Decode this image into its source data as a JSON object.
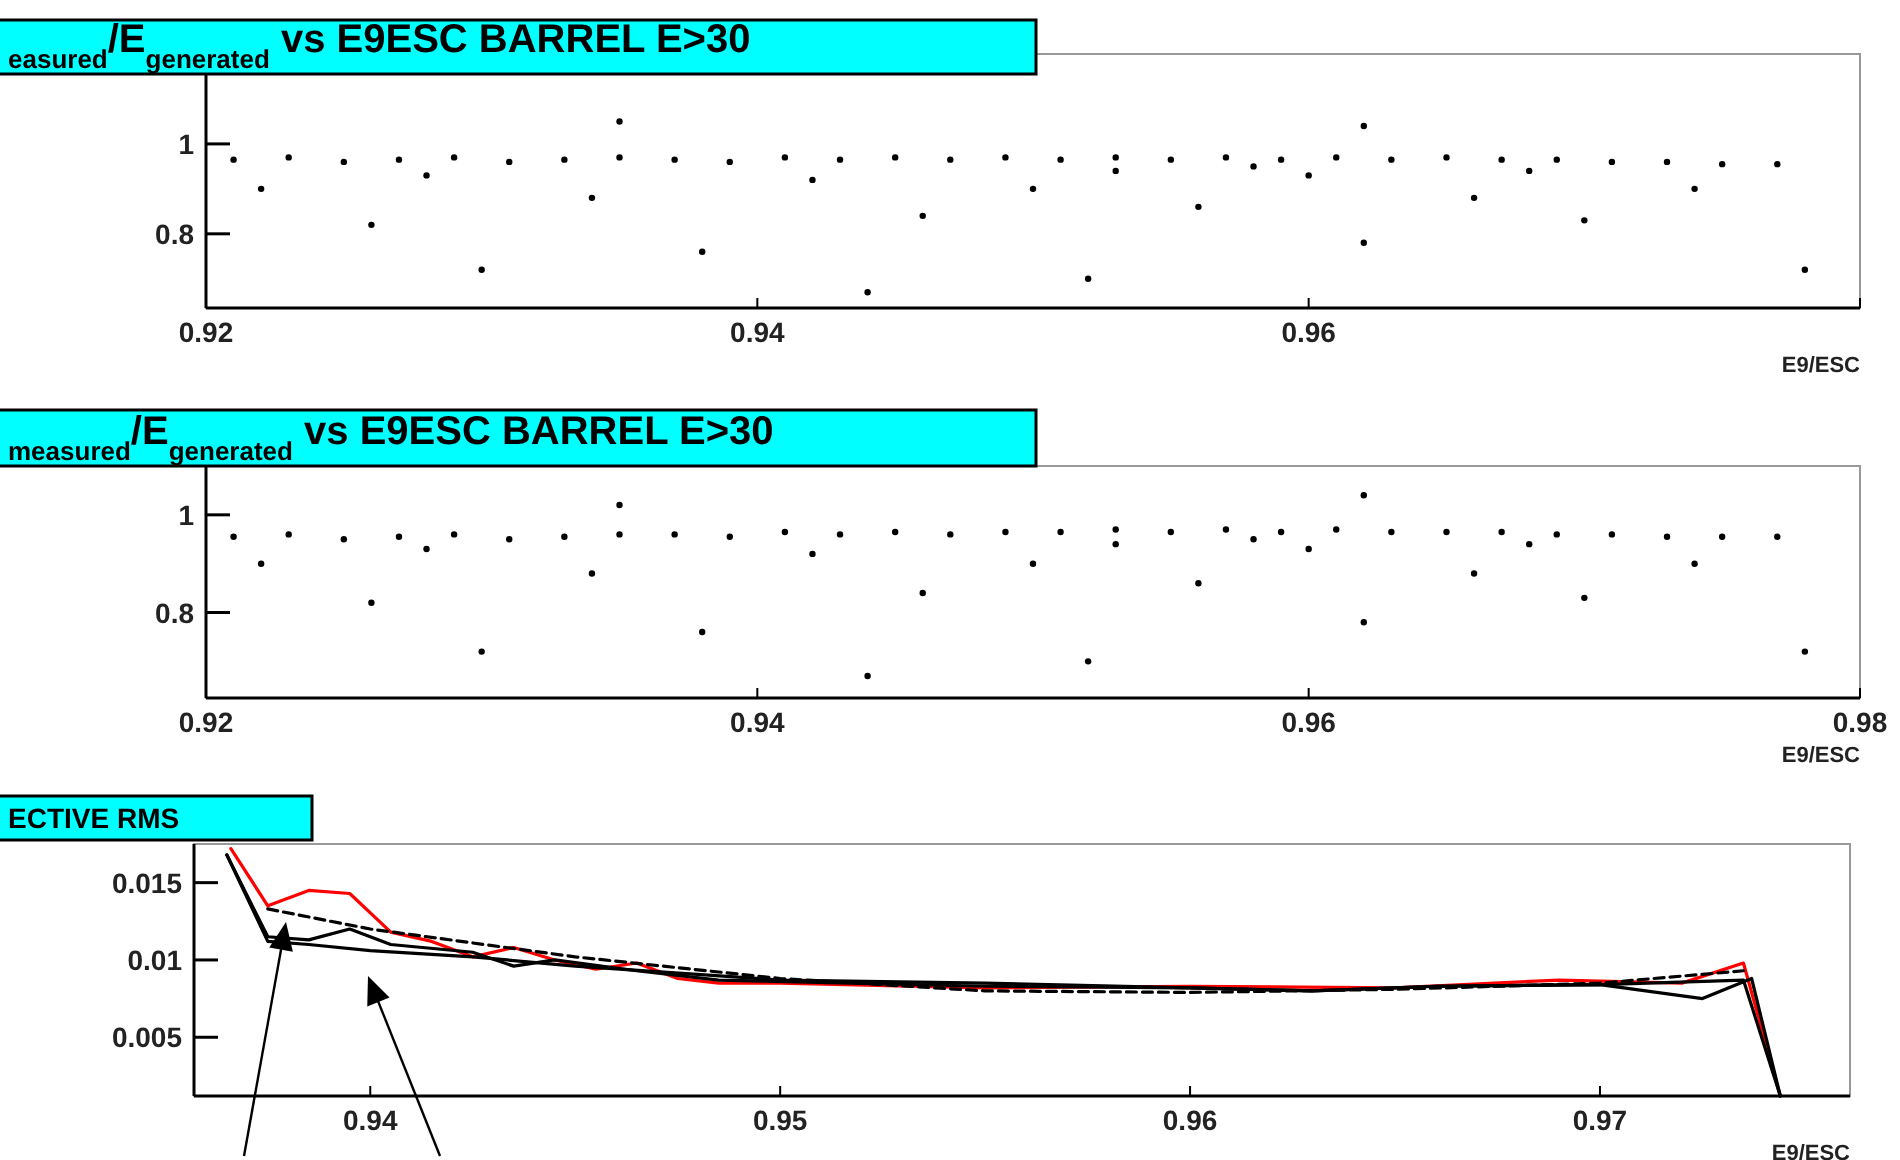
{
  "chart_data": [
    {
      "type": "scatter",
      "title": "$_{easured}$/E$_{generated}$ vs E9ESC BARREL E>30",
      "xlabel": "E9/ESC",
      "marker": "circle",
      "xlim": [
        0.92,
        0.98
      ],
      "ylim": [
        0.635,
        1.2
      ],
      "xticks": [
        0.92,
        0.94,
        0.96,
        {
          "value": 0.98,
          "label": null
        }
      ],
      "yticks": [
        0.8,
        1
      ],
      "series": [
        {
          "color": "#000000",
          "x": [
            0.921,
            0.923,
            0.925,
            0.927,
            0.929,
            0.931,
            0.933,
            0.935,
            0.937,
            0.939,
            0.941,
            0.943,
            0.945,
            0.947,
            0.949,
            0.951,
            0.953,
            0.955,
            0.957,
            0.959,
            0.961,
            0.963,
            0.965,
            0.967,
            0.969,
            0.971,
            0.973,
            0.975,
            0.977,
            0.922,
            0.926,
            0.93,
            0.934,
            0.938,
            0.942,
            0.946,
            0.95,
            0.952,
            0.956,
            0.96,
            0.962,
            0.966,
            0.97,
            0.974,
            0.978,
            0.935,
            0.962,
            0.944,
            0.928,
            0.958,
            0.953,
            0.968
          ],
          "values": [
            0.965,
            0.97,
            0.96,
            0.965,
            0.97,
            0.96,
            0.965,
            0.97,
            0.965,
            0.96,
            0.97,
            0.965,
            0.97,
            0.965,
            0.97,
            0.965,
            0.97,
            0.965,
            0.97,
            0.965,
            0.97,
            0.965,
            0.97,
            0.965,
            0.965,
            0.96,
            0.96,
            0.955,
            0.955,
            0.9,
            0.82,
            0.72,
            0.88,
            0.76,
            0.92,
            0.84,
            0.9,
            0.7,
            0.86,
            0.93,
            0.78,
            0.88,
            0.83,
            0.9,
            0.72,
            1.05,
            1.04,
            0.67,
            0.93,
            0.95,
            0.94,
            0.94
          ]
        }
      ]
    },
    {
      "type": "scatter",
      "title": "$_{measured}$/E$_{generated}$ vs E9ESC BARREL E>30",
      "xlabel": "E9/ESC",
      "marker": "circle",
      "xlim": [
        0.92,
        0.98
      ],
      "ylim": [
        0.625,
        1.1
      ],
      "xticks": [
        0.92,
        0.94,
        0.96,
        0.98
      ],
      "yticks": [
        0.8,
        1
      ],
      "series": [
        {
          "color": "#000000",
          "x": [
            0.921,
            0.923,
            0.925,
            0.927,
            0.929,
            0.931,
            0.933,
            0.935,
            0.937,
            0.939,
            0.941,
            0.943,
            0.945,
            0.947,
            0.949,
            0.951,
            0.953,
            0.955,
            0.957,
            0.959,
            0.961,
            0.963,
            0.965,
            0.967,
            0.969,
            0.971,
            0.973,
            0.975,
            0.977,
            0.922,
            0.926,
            0.93,
            0.934,
            0.938,
            0.942,
            0.946,
            0.95,
            0.952,
            0.956,
            0.96,
            0.962,
            0.966,
            0.97,
            0.974,
            0.978,
            0.935,
            0.962,
            0.944,
            0.928,
            0.958,
            0.953,
            0.968
          ],
          "values": [
            0.955,
            0.96,
            0.95,
            0.955,
            0.96,
            0.95,
            0.955,
            0.96,
            0.96,
            0.955,
            0.965,
            0.96,
            0.965,
            0.96,
            0.965,
            0.965,
            0.97,
            0.965,
            0.97,
            0.965,
            0.97,
            0.965,
            0.965,
            0.965,
            0.96,
            0.96,
            0.955,
            0.955,
            0.955,
            0.9,
            0.82,
            0.72,
            0.88,
            0.76,
            0.92,
            0.84,
            0.9,
            0.7,
            0.86,
            0.93,
            0.78,
            0.88,
            0.83,
            0.9,
            0.72,
            1.02,
            1.04,
            0.67,
            0.93,
            0.95,
            0.94,
            0.94
          ]
        }
      ]
    },
    {
      "type": "line",
      "title": "ECTIVE RMS",
      "xlabel": "E9/ESC",
      "xlim": [
        0.9357,
        0.9761
      ],
      "ylim": [
        0.0012,
        0.0175
      ],
      "xticks": [
        0.94,
        0.95,
        0.96,
        0.97
      ],
      "yticks": [
        0.005,
        0.01,
        0.015
      ],
      "series": [
        {
          "color": "#ff0000",
          "line_style": "solid",
          "x": [
            0.9366,
            0.9375,
            0.9385,
            0.9395,
            0.9405,
            0.9415,
            0.9425,
            0.9435,
            0.9445,
            0.9455,
            0.9465,
            0.9475,
            0.9485,
            0.95,
            0.955,
            0.96,
            0.965,
            0.969,
            0.972,
            0.9735,
            0.9744
          ],
          "values": [
            0.0172,
            0.0135,
            0.0145,
            0.0143,
            0.0118,
            0.0112,
            0.0102,
            0.0108,
            0.01,
            0.0094,
            0.0098,
            0.0088,
            0.0085,
            0.0085,
            0.0082,
            0.0083,
            0.0082,
            0.0087,
            0.0085,
            0.0098,
            0.0012
          ]
        },
        {
          "color": "#000000",
          "line_style": "solid",
          "x": [
            0.9365,
            0.9375,
            0.9385,
            0.9395,
            0.9405,
            0.9425,
            0.9435,
            0.9445,
            0.9465,
            0.9485,
            0.955,
            0.96,
            0.963,
            0.966,
            0.97,
            0.9725,
            0.9737,
            0.9744
          ],
          "values": [
            0.0168,
            0.0115,
            0.0113,
            0.012,
            0.011,
            0.0105,
            0.0096,
            0.01,
            0.0093,
            0.0087,
            0.0083,
            0.0082,
            0.008,
            0.0083,
            0.0084,
            0.0075,
            0.0088,
            0.0012
          ]
        },
        {
          "color": "#000000",
          "line_style": "solid",
          "x": [
            0.9365,
            0.9375,
            0.9385,
            0.94,
            0.9425,
            0.945,
            0.95,
            0.955,
            0.96,
            0.963,
            0.966,
            0.97,
            0.9735,
            0.9744
          ],
          "values": [
            0.0168,
            0.0112,
            0.011,
            0.0106,
            0.0102,
            0.0096,
            0.0087,
            0.0085,
            0.0082,
            0.008,
            0.0083,
            0.0084,
            0.0087,
            0.0012
          ]
        },
        {
          "color": "#000000",
          "line_style": "dashed",
          "x": [
            0.9375,
            0.94,
            0.945,
            0.95,
            0.955,
            0.96,
            0.965,
            0.97,
            0.9735
          ],
          "values": [
            0.0133,
            0.012,
            0.0102,
            0.0088,
            0.008,
            0.0079,
            0.0081,
            0.0085,
            0.0093
          ]
        }
      ]
    }
  ]
}
